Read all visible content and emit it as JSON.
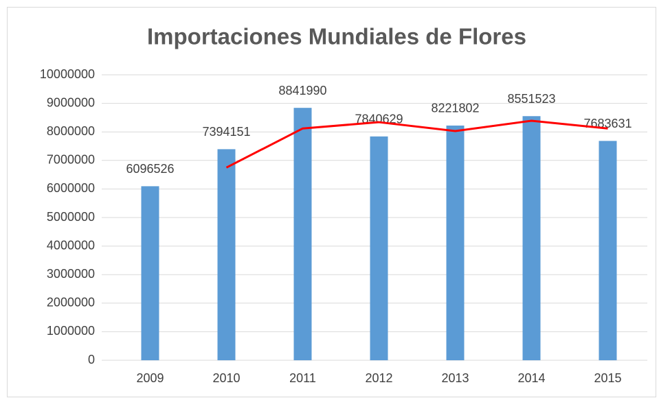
{
  "chart_data": {
    "type": "bar",
    "title": "Importaciones Mundiales de Flores",
    "categories": [
      "2009",
      "2010",
      "2011",
      "2012",
      "2013",
      "2014",
      "2015"
    ],
    "series": [
      {
        "type": "bar",
        "color": "#5b9bd5",
        "values": [
          6096526,
          7394151,
          8841990,
          7840629,
          8221802,
          8551523,
          7683631
        ]
      },
      {
        "type": "line",
        "color": "#ff0000",
        "values": [
          null,
          6750000,
          8120000,
          8340000,
          8030000,
          8390000,
          8120000
        ]
      }
    ],
    "ylim": [
      0,
      10000000
    ],
    "yticks": [
      0,
      1000000,
      2000000,
      3000000,
      4000000,
      5000000,
      6000000,
      7000000,
      8000000,
      9000000,
      10000000
    ],
    "grid": true
  }
}
